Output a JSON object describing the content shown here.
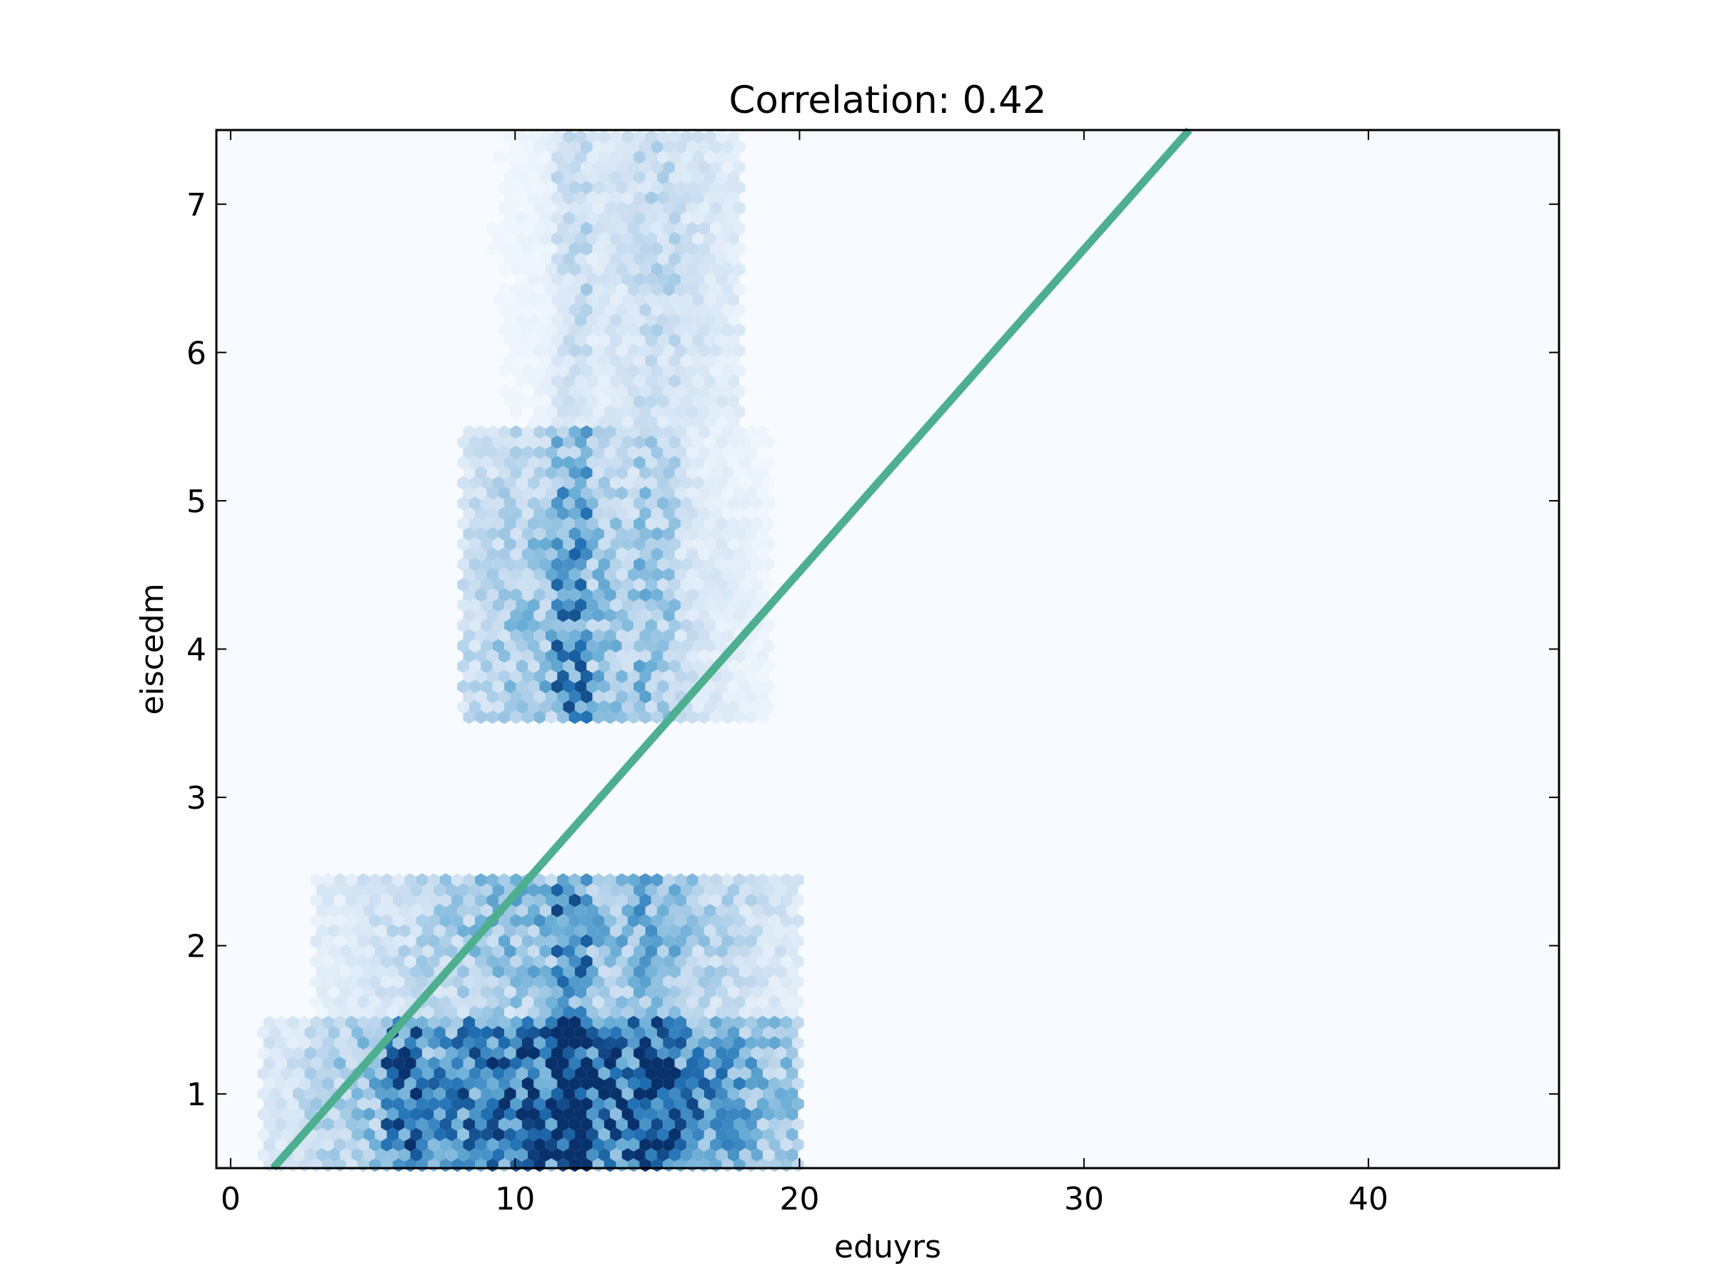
{
  "chart_data": {
    "type": "heatmap",
    "subtype": "hexbin",
    "title": "Correlation: 0.42",
    "xlabel": "eduyrs",
    "ylabel": "eiscedm",
    "xlim": [
      -0.5,
      46.7
    ],
    "ylim": [
      0.5,
      7.5
    ],
    "xticks": [
      0,
      10,
      20,
      30,
      40
    ],
    "yticks": [
      1,
      2,
      3,
      4,
      5,
      6,
      7
    ],
    "colormap": "Blues",
    "background_color": "#f7fbff",
    "fit_line": {
      "color": "#4daf8f",
      "x": [
        1.5,
        33.7
      ],
      "y": [
        0.5,
        7.5
      ]
    },
    "density_clusters": [
      {
        "x_range": [
          1,
          20
        ],
        "y_range": [
          0.5,
          1.5
        ],
        "peak_x": 12,
        "peak_y": 1.0,
        "level": 1.0
      },
      {
        "x_range": [
          5.5,
          6.5
        ],
        "y_range": [
          0.5,
          1.5
        ],
        "peak_x": 6,
        "peak_y": 1.0,
        "level": 0.45
      },
      {
        "x_range": [
          3,
          20
        ],
        "y_range": [
          1.5,
          2.5
        ],
        "peak_x": 12,
        "peak_y": 2.2,
        "level": 0.55
      },
      {
        "x_range": [
          8,
          19
        ],
        "y_range": [
          3.5,
          5.5
        ],
        "peak_x": 12,
        "peak_y": 4.0,
        "level": 0.5
      },
      {
        "x_range": [
          9,
          18
        ],
        "y_range": [
          5.5,
          7.5
        ],
        "peak_x": 15,
        "peak_y": 6.8,
        "level": 0.25
      }
    ]
  }
}
